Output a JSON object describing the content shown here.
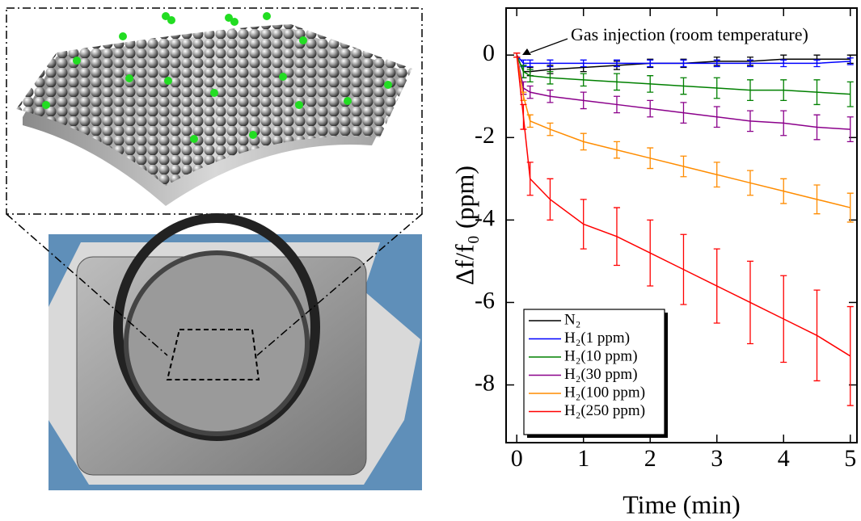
{
  "chart_data": {
    "type": "line",
    "annotation": "Gas injection (room temperature)",
    "x_label": "Time (min)",
    "y_label": "Δf/f₀ (ppm)",
    "x": [
      0,
      0.1,
      0.2,
      0.5,
      1,
      1.5,
      2,
      2.5,
      3,
      3.5,
      4,
      4.5,
      5
    ],
    "series": [
      {
        "name": "N₂",
        "color": "#000000",
        "values": [
          0,
          -0.4,
          -0.4,
          -0.35,
          -0.3,
          -0.25,
          -0.2,
          -0.2,
          -0.15,
          -0.15,
          -0.1,
          -0.1,
          -0.1
        ],
        "errors": [
          0.05,
          0.15,
          0.1,
          0.1,
          0.1,
          0.1,
          0.1,
          0.1,
          0.1,
          0.1,
          0.1,
          0.1,
          0.1
        ]
      },
      {
        "name": "H₂(1 ppm)",
        "color": "#0000ff",
        "values": [
          0,
          -0.2,
          -0.2,
          -0.2,
          -0.2,
          -0.2,
          -0.2,
          -0.2,
          -0.2,
          -0.2,
          -0.2,
          -0.2,
          -0.15
        ],
        "errors": [
          0.05,
          0.08,
          0.08,
          0.08,
          0.08,
          0.08,
          0.08,
          0.08,
          0.08,
          0.08,
          0.08,
          0.08,
          0.08
        ]
      },
      {
        "name": "H₂(10 ppm)",
        "color": "#008000",
        "values": [
          0,
          -0.4,
          -0.5,
          -0.55,
          -0.6,
          -0.65,
          -0.7,
          -0.75,
          -0.8,
          -0.85,
          -0.85,
          -0.9,
          -0.95
        ],
        "errors": [
          0.05,
          0.15,
          0.15,
          0.15,
          0.15,
          0.2,
          0.2,
          0.2,
          0.25,
          0.25,
          0.25,
          0.3,
          0.3
        ]
      },
      {
        "name": "H₂(30 ppm)",
        "color": "#8b008b",
        "values": [
          0,
          -0.8,
          -0.9,
          -1.0,
          -1.1,
          -1.2,
          -1.3,
          -1.4,
          -1.5,
          -1.6,
          -1.65,
          -1.75,
          -1.8
        ],
        "errors": [
          0.05,
          0.15,
          0.15,
          0.15,
          0.2,
          0.2,
          0.2,
          0.25,
          0.25,
          0.25,
          0.3,
          0.3,
          0.3
        ]
      },
      {
        "name": "H₂(100 ppm)",
        "color": "#ff8c00",
        "values": [
          0,
          -1.0,
          -1.6,
          -1.8,
          -2.1,
          -2.3,
          -2.5,
          -2.7,
          -2.9,
          -3.1,
          -3.3,
          -3.5,
          -3.7
        ],
        "errors": [
          0.05,
          0.1,
          0.15,
          0.15,
          0.2,
          0.2,
          0.25,
          0.25,
          0.3,
          0.3,
          0.3,
          0.35,
          0.35
        ]
      },
      {
        "name": "H₂(250 ppm)",
        "color": "#ff0000",
        "values": [
          0,
          -1.5,
          -3.0,
          -3.5,
          -4.1,
          -4.4,
          -4.8,
          -5.2,
          -5.6,
          -6.0,
          -6.4,
          -6.8,
          -7.3
        ],
        "errors": [
          0.05,
          0.3,
          0.4,
          0.5,
          0.6,
          0.7,
          0.8,
          0.85,
          0.9,
          1.0,
          1.05,
          1.1,
          1.2
        ]
      }
    ],
    "xlim": [
      -0.16,
      5.1
    ],
    "ylim": [
      -9.4,
      1.14
    ],
    "xticks": [
      0,
      1,
      2,
      3,
      4,
      5
    ],
    "yticks": [
      0,
      -2,
      -4,
      -6,
      -8
    ],
    "legend": "lower left"
  }
}
